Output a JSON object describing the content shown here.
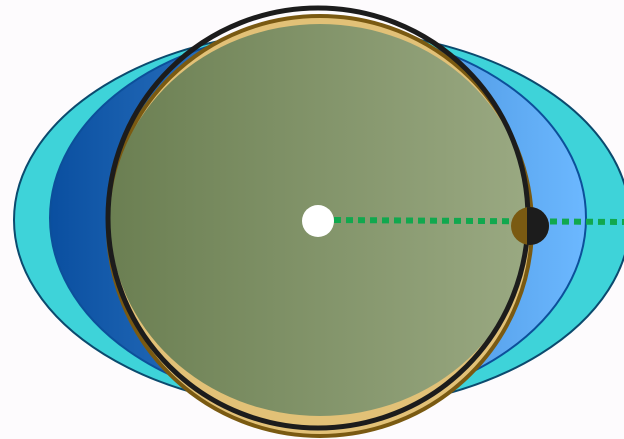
{
  "diagram": {
    "colors": {
      "background": "#fdfbfd",
      "outer_ellipse_fill": "#3ed3d9",
      "outer_ellipse_stroke": "#0b4a6e",
      "middle_ellipse_gradient": [
        "#0a4fa0",
        "#6cb8ff"
      ],
      "middle_ellipse_stroke": "#0c4f9a",
      "gold_ellipse_fill": "#e2c177",
      "gold_ellipse_stroke": "#7a5a12",
      "green_disc_gradient": [
        "#6b7f52",
        "#9aa982"
      ],
      "black_circle_stroke": "#1c1c1c",
      "center_dot": "#ffffff",
      "dashed_line": "#11a84e",
      "end_point_left": "#7a5a12",
      "end_point_right": "#1c1c1c"
    },
    "elements": [
      "outer-ellipse",
      "middle-ellipse",
      "gold-ellipse",
      "green-disc",
      "black-circle",
      "center-point",
      "dashed-radius-line",
      "end-point-marker"
    ]
  }
}
